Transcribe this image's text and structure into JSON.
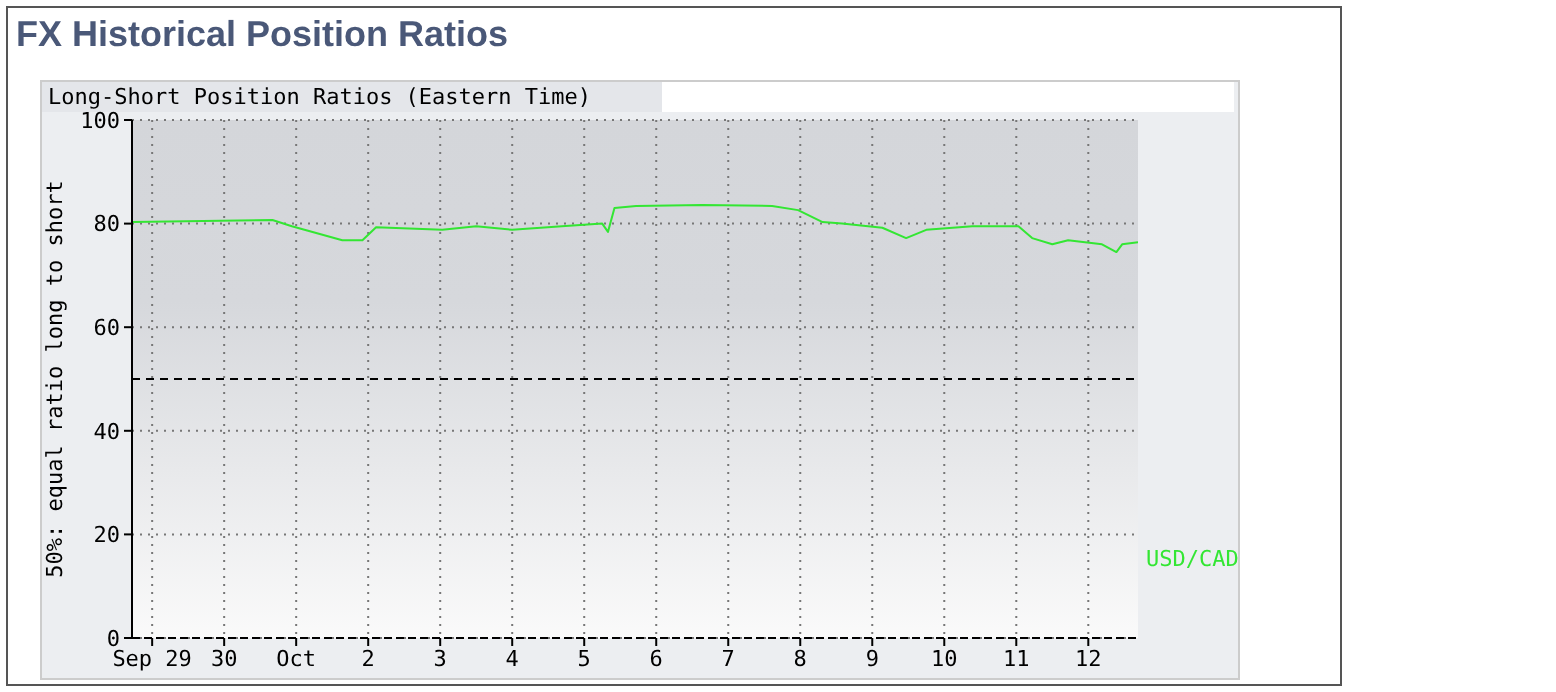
{
  "chart_data": {
    "type": "line",
    "title": "FX Historical Position Ratios",
    "subtitle": "Long-Short Position Ratios (Eastern Time)",
    "ylabel": "50%: equal ratio long to short",
    "x": [
      "--09-28T17:17",
      "--09-30T16:05",
      "--09-30T22:34",
      "--10-01T15:22",
      "--10-01T22:05",
      "--10-02T02:38",
      "--10-03T00:43",
      "--10-03T12:00",
      "--10-04T00:00",
      "--10-04T16:34",
      "--10-05T06:00",
      "--10-05T07:55",
      "--10-05T10:05",
      "--10-05T17:17",
      "--10-06T15:22",
      "--10-07T14:38",
      "--10-07T23:17",
      "--10-08T07:26",
      "--10-08T13:55",
      "--10-09T03:22",
      "--10-09T11:17",
      "--10-09T18:00",
      "--10-10T09:22",
      "--10-11T00:43",
      "--10-11T05:17",
      "--10-11T12:00",
      "--10-11T17:17",
      "--10-12T04:34",
      "--10-12T09:22",
      "--10-12T11:17",
      "--10-12T16:34"
    ],
    "series": [
      {
        "name": "USD/CAD",
        "color": "#33e633",
        "values": [
          80.3,
          80.7,
          79.5,
          76.8,
          76.8,
          79.3,
          78.8,
          79.5,
          78.8,
          79.5,
          80,
          78.4,
          83,
          83.4,
          83.6,
          83.4,
          82.6,
          80.3,
          80,
          79.2,
          77.2,
          78.8,
          79.5,
          79.5,
          77.2,
          76,
          76.8,
          76,
          74.5,
          76,
          76.4
        ]
      }
    ],
    "xlim": [
      "--09-28T17:17",
      "--10-12T16:34"
    ],
    "xticks": [
      {
        "value": "--09-29",
        "label": "Sep 29"
      },
      {
        "value": "--09-30",
        "label": "30"
      },
      {
        "value": "--10-01",
        "label": "Oct"
      },
      {
        "value": "--10-02",
        "label": "2"
      },
      {
        "value": "--10-03",
        "label": "3"
      },
      {
        "value": "--10-04",
        "label": "4"
      },
      {
        "value": "--10-05",
        "label": "5"
      },
      {
        "value": "--10-06",
        "label": "6"
      },
      {
        "value": "--10-07",
        "label": "7"
      },
      {
        "value": "--10-08",
        "label": "8"
      },
      {
        "value": "--10-09",
        "label": "9"
      },
      {
        "value": "--10-10",
        "label": "10"
      },
      {
        "value": "--10-11",
        "label": "11"
      },
      {
        "value": "--10-12",
        "label": "12"
      }
    ],
    "ylim": [
      0,
      100
    ],
    "yticks": [
      0,
      20,
      40,
      60,
      80,
      100
    ],
    "ref_lines": [
      {
        "axis": "y",
        "value": 50,
        "color": "#000000",
        "line_style": "dashed"
      }
    ],
    "grid": true,
    "legend": "right",
    "marker": "none",
    "line_style": "solid"
  }
}
